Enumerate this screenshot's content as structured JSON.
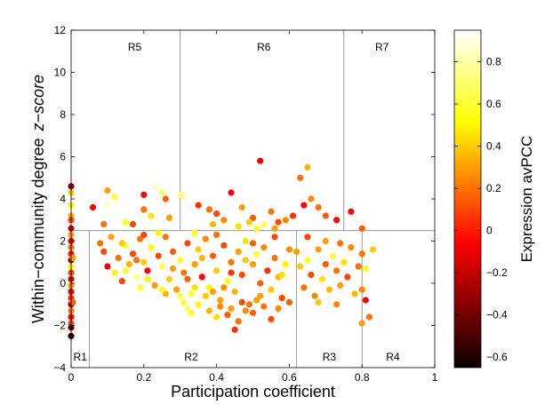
{
  "chart_data": {
    "type": "scatter",
    "title": "",
    "xlabel": "Participation coefficient",
    "ylabel": "Within−community degree",
    "ylabel_italic": "z−score",
    "xlim": [
      0,
      1
    ],
    "ylim": [
      -4,
      12
    ],
    "xticks": [
      "0",
      "0.2",
      "0.4",
      "0.6",
      "0.8",
      "1"
    ],
    "yticks": [
      "−4",
      "−2",
      "0",
      "2",
      "4",
      "6",
      "8",
      "10",
      "12"
    ],
    "grid": false,
    "region_boundaries": {
      "horizontal_z": 2.5,
      "lower_x": [
        0.05,
        0.62,
        0.8
      ],
      "upper_x": [
        0.3,
        0.75
      ]
    },
    "regions": [
      {
        "label": "R1",
        "x": 0.025,
        "y": -3.5
      },
      {
        "label": "R2",
        "x": 0.33,
        "y": -3.5
      },
      {
        "label": "R3",
        "x": 0.71,
        "y": -3.5
      },
      {
        "label": "R4",
        "x": 0.885,
        "y": -3.5
      },
      {
        "label": "R5",
        "x": 0.175,
        "y": 11.2
      },
      {
        "label": "R6",
        "x": 0.53,
        "y": 11.2
      },
      {
        "label": "R7",
        "x": 0.855,
        "y": 11.2
      }
    ],
    "colorbar": {
      "label": "Expression avPCC",
      "min": -0.65,
      "max": 0.95,
      "ticks": [
        "0.8",
        "0.6",
        "0.4",
        "0.2",
        "0",
        "−0.2",
        "−0.4",
        "−0.6"
      ],
      "colormap": "hot"
    },
    "points": [
      [
        0,
        4.6,
        -0.35
      ],
      [
        0,
        4.3,
        0.4
      ],
      [
        0,
        3.7,
        0.5
      ],
      [
        0,
        3.2,
        0.35
      ],
      [
        0,
        3,
        0.1
      ],
      [
        0,
        2.6,
        -0.2
      ],
      [
        0,
        2.3,
        0.3
      ],
      [
        0,
        2,
        -0.1
      ],
      [
        0,
        1.7,
        0.2
      ],
      [
        0,
        1.4,
        0
      ],
      [
        0,
        1.1,
        -0.3
      ],
      [
        0,
        0.8,
        0.5
      ],
      [
        0,
        0.5,
        0.1
      ],
      [
        0,
        0.2,
        -0.15
      ],
      [
        0,
        -0.1,
        0.25
      ],
      [
        0,
        -0.4,
        -0.1
      ],
      [
        0,
        -0.7,
        0.05
      ],
      [
        0,
        -1,
        -0.3
      ],
      [
        0,
        -1.3,
        0.2
      ],
      [
        0,
        -1.6,
        -0.05
      ],
      [
        0,
        -1.9,
        0.1
      ],
      [
        0,
        -2.1,
        -0.45
      ],
      [
        0,
        -2.5,
        -0.55
      ],
      [
        0.005,
        1.2,
        0.3
      ],
      [
        0.005,
        -0.9,
        0.15
      ],
      [
        0.06,
        3.6,
        -0.1
      ],
      [
        0.1,
        4.4,
        0.3
      ],
      [
        0.12,
        4.1,
        0.6
      ],
      [
        0.15,
        2.9,
        0.55
      ],
      [
        0.17,
        2.8,
        0.1
      ],
      [
        0.2,
        3.5,
        0.2
      ],
      [
        0.2,
        4.2,
        -0.05
      ],
      [
        0.23,
        4.6,
        0.85
      ],
      [
        0.25,
        4.3,
        0.7
      ],
      [
        0.26,
        4.0,
        0.15
      ],
      [
        0.3,
        4.2,
        0.75
      ],
      [
        0.31,
        4.1,
        0.8
      ],
      [
        0.27,
        3.1,
        0.3
      ],
      [
        0.22,
        3.2,
        0.45
      ],
      [
        0.1,
        3.8,
        0.85
      ],
      [
        0.08,
        1.9,
        0.2
      ],
      [
        0.09,
        1.5,
        0.1
      ],
      [
        0.1,
        0.8,
        -0.1
      ],
      [
        0.11,
        2.2,
        0.3
      ],
      [
        0.12,
        0.5,
        0.5
      ],
      [
        0.13,
        1.2,
        0.2
      ],
      [
        0.14,
        0.1,
        0.1
      ],
      [
        0.15,
        1.8,
        0.6
      ],
      [
        0.16,
        0.9,
        0.35
      ],
      [
        0.17,
        1.4,
        0.1
      ],
      [
        0.18,
        0.3,
        0.75
      ],
      [
        0.19,
        2.1,
        0.2
      ],
      [
        0.2,
        1.0,
        0.4
      ],
      [
        0.21,
        0.6,
        -0.05
      ],
      [
        0.22,
        1.7,
        0.5
      ],
      [
        0.23,
        -0.1,
        0.3
      ],
      [
        0.24,
        1.3,
        0.1
      ],
      [
        0.25,
        0.8,
        0.65
      ],
      [
        0.26,
        2.2,
        0.2
      ],
      [
        0.27,
        0.2,
        0.4
      ],
      [
        0.28,
        1.5,
        0.15
      ],
      [
        0.29,
        -0.3,
        0.3
      ],
      [
        0.3,
        1.1,
        0.55
      ],
      [
        0.31,
        0.5,
        0.2
      ],
      [
        0.32,
        1.9,
        0.1
      ],
      [
        0.33,
        -0.5,
        0.6
      ],
      [
        0.34,
        0.9,
        0.3
      ],
      [
        0.35,
        1.6,
        0.4
      ],
      [
        0.36,
        0.3,
        -0.05
      ],
      [
        0.37,
        2.1,
        0.25
      ],
      [
        0.38,
        -0.2,
        0.5
      ],
      [
        0.39,
        1.3,
        0.15
      ],
      [
        0.4,
        0.6,
        0.4
      ],
      [
        0.41,
        -0.8,
        0.3
      ],
      [
        0.42,
        1.8,
        0.1
      ],
      [
        0.43,
        0.1,
        0.55
      ],
      [
        0.44,
        1.0,
        0.2
      ],
      [
        0.45,
        -0.4,
        0.35
      ],
      [
        0.46,
        1.5,
        0.3
      ],
      [
        0.47,
        0.4,
        0.1
      ],
      [
        0.48,
        2.0,
        0.45
      ],
      [
        0.49,
        -1.0,
        0.2
      ],
      [
        0.5,
        0.9,
        0.3
      ],
      [
        0.51,
        1.4,
        0.6
      ],
      [
        0.52,
        0.0,
        0.15
      ],
      [
        0.53,
        1.7,
        0.25
      ],
      [
        0.54,
        0.6,
        0.05
      ],
      [
        0.55,
        -0.3,
        0.4
      ],
      [
        0.56,
        1.2,
        0.2
      ],
      [
        0.57,
        0.3,
        0.35
      ],
      [
        0.58,
        -0.7,
        0.1
      ],
      [
        0.59,
        0.9,
        0.5
      ],
      [
        0.6,
        1.6,
        0.25
      ],
      [
        0.09,
        2.8,
        0.2
      ],
      [
        0.14,
        1.9,
        0.4
      ],
      [
        0.18,
        1.1,
        0.2
      ],
      [
        0.24,
        2.4,
        0.5
      ],
      [
        0.28,
        0.7,
        0.3
      ],
      [
        0.32,
        0.2,
        0.15
      ],
      [
        0.36,
        1.2,
        0.35
      ],
      [
        0.4,
        2.3,
        0.2
      ],
      [
        0.44,
        0.5,
        0.05
      ],
      [
        0.48,
        1.1,
        0.4
      ],
      [
        0.52,
        -0.6,
        0.3
      ],
      [
        0.56,
        2.2,
        0.1
      ],
      [
        0.15,
        0.6,
        0.6
      ],
      [
        0.2,
        2.3,
        0.1
      ],
      [
        0.26,
        -0.5,
        0.35
      ],
      [
        0.34,
        2.4,
        0.55
      ],
      [
        0.42,
        -0.2,
        0.25
      ],
      [
        0.5,
        1.9,
        0.15
      ],
      [
        0.58,
        0.4,
        0.45
      ],
      [
        0.19,
        -0.2,
        0.6
      ],
      [
        0.21,
        0.2,
        0.5
      ],
      [
        0.25,
        -0.3,
        0.55
      ],
      [
        0.3,
        -0.6,
        0.65
      ],
      [
        0.31,
        -0.9,
        0.6
      ],
      [
        0.32,
        -1.2,
        0.7
      ],
      [
        0.33,
        -1.4,
        0.55
      ],
      [
        0.34,
        -0.2,
        0.45
      ],
      [
        0.35,
        -1.0,
        0.5
      ],
      [
        0.37,
        -0.6,
        0.4
      ],
      [
        0.38,
        -1.3,
        0.35
      ],
      [
        0.39,
        -0.4,
        0.3
      ],
      [
        0.4,
        -1.6,
        0.45
      ],
      [
        0.41,
        -1.1,
        0.25
      ],
      [
        0.43,
        -1.5,
        0.15
      ],
      [
        0.44,
        -1.2,
        0.3
      ],
      [
        0.45,
        -2.2,
        0.05
      ],
      [
        0.46,
        -1.8,
        0.2
      ],
      [
        0.47,
        -0.9,
        0.1
      ],
      [
        0.48,
        -1.3,
        0.25
      ],
      [
        0.5,
        -1.4,
        0.15
      ],
      [
        0.51,
        -0.8,
        0.3
      ],
      [
        0.53,
        -1.1,
        0.2
      ],
      [
        0.55,
        -1.7,
        0.1
      ],
      [
        0.57,
        -1.2,
        0.25
      ],
      [
        0.6,
        -0.9,
        0.15
      ],
      [
        0.35,
        3.7,
        0.05
      ],
      [
        0.38,
        3.5,
        0.2
      ],
      [
        0.4,
        3.3,
        0.1
      ],
      [
        0.39,
        2.8,
        0.35
      ],
      [
        0.42,
        3.0,
        0.25
      ],
      [
        0.44,
        4.3,
        -0.05
      ],
      [
        0.47,
        3.6,
        0.3
      ],
      [
        0.5,
        3.1,
        0.15
      ],
      [
        0.52,
        5.8,
        -0.1
      ],
      [
        0.53,
        2.8,
        0.65
      ],
      [
        0.55,
        3.4,
        0.2
      ],
      [
        0.57,
        2.9,
        0.1
      ],
      [
        0.59,
        3.0,
        0.25
      ],
      [
        0.61,
        3.2,
        0.05
      ],
      [
        0.63,
        5.0,
        0.2
      ],
      [
        0.64,
        3.7,
        -0.05
      ],
      [
        0.65,
        5.5,
        0.35
      ],
      [
        0.66,
        4.0,
        0.25
      ],
      [
        0.68,
        3.6,
        0.2
      ],
      [
        0.7,
        3.2,
        0.15
      ],
      [
        0.73,
        3.0,
        -0.05
      ],
      [
        0.51,
        2.6,
        0.55
      ],
      [
        0.46,
        2.7,
        0.45
      ],
      [
        0.56,
        2.6,
        0.3
      ],
      [
        0.49,
        2.9,
        0.4
      ],
      [
        0.62,
        1.5,
        0.3
      ],
      [
        0.63,
        0.8,
        0.4
      ],
      [
        0.64,
        -0.2,
        0.2
      ],
      [
        0.65,
        1.1,
        0.55
      ],
      [
        0.66,
        0.4,
        0.1
      ],
      [
        0.67,
        -0.6,
        0.25
      ],
      [
        0.68,
        1.6,
        0.3
      ],
      [
        0.69,
        0.2,
        0.45
      ],
      [
        0.7,
        0.9,
        0.15
      ],
      [
        0.71,
        -0.3,
        0.35
      ],
      [
        0.72,
        1.3,
        0.6
      ],
      [
        0.73,
        0.6,
        0.2
      ],
      [
        0.74,
        -0.1,
        0.3
      ],
      [
        0.75,
        1.0,
        0.45
      ],
      [
        0.76,
        0.3,
        0.1
      ],
      [
        0.77,
        1.7,
        0.25
      ],
      [
        0.78,
        -0.5,
        0.35
      ],
      [
        0.79,
        0.8,
        0.2
      ],
      [
        0.65,
        2.2,
        0.1
      ],
      [
        0.7,
        2.0,
        0.3
      ],
      [
        0.74,
        1.9,
        0.2
      ],
      [
        0.68,
        -0.9,
        0.4
      ],
      [
        0.73,
        -1.0,
        0.25
      ],
      [
        0.77,
        3.4,
        -0.05
      ],
      [
        0.8,
        2.6,
        0.15
      ],
      [
        0.8,
        -0.3,
        0.25
      ],
      [
        0.8,
        -1.9,
        0.3
      ],
      [
        0.81,
        -0.8,
        -0.1
      ],
      [
        0.82,
        -1.6,
        0.2
      ],
      [
        0.83,
        1.6,
        0.4
      ],
      [
        0.81,
        0.7,
        0.55
      ],
      [
        0.8,
        1.4,
        0.2
      ]
    ]
  }
}
